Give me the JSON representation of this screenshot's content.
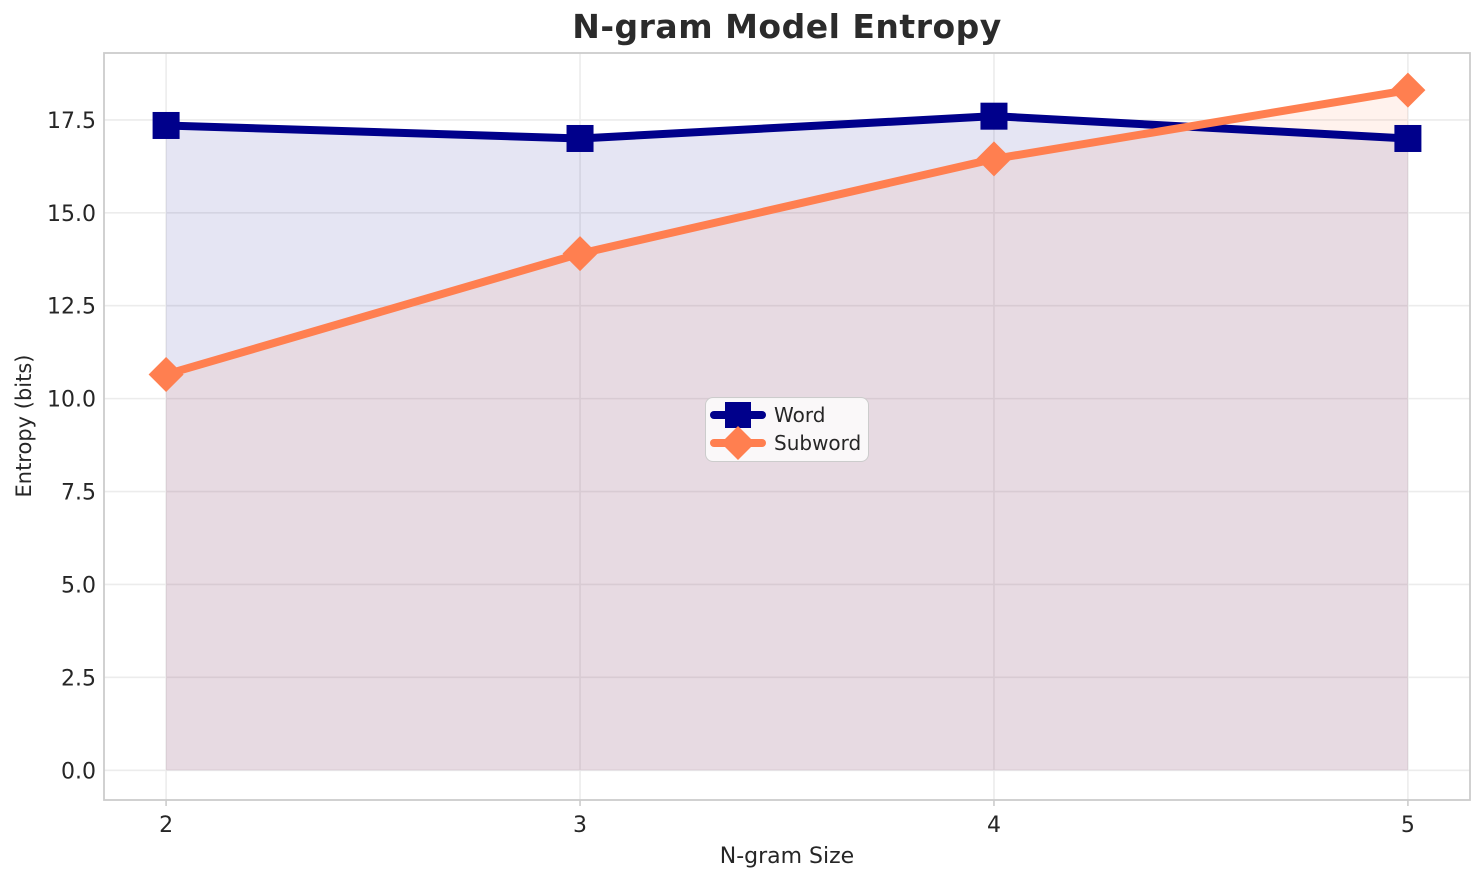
{
  "chart_data": {
    "type": "line",
    "title": "N-gram Model Entropy",
    "xlabel": "N-gram Size",
    "ylabel": "Entropy (bits)",
    "x": [
      2,
      3,
      4,
      5
    ],
    "series": [
      {
        "name": "Word",
        "values": [
          17.35,
          17.0,
          17.6,
          17.0
        ],
        "color": "#00008B",
        "marker": "square",
        "fill_to_zero": true,
        "fill_opacity": 0.1,
        "line_width": 8,
        "marker_size": 27
      },
      {
        "name": "Subword",
        "values": [
          10.65,
          13.9,
          16.45,
          18.3
        ],
        "color": "#FF7F50",
        "marker": "diamond",
        "fill_to_zero": true,
        "fill_opacity": 0.1,
        "line_width": 8,
        "marker_size": 35
      }
    ],
    "xticks": [
      2,
      3,
      4,
      5
    ],
    "xtick_labels": [
      "2",
      "3",
      "4",
      "5"
    ],
    "yticks": [
      0.0,
      2.5,
      5.0,
      7.5,
      10.0,
      12.5,
      15.0,
      17.5
    ],
    "ytick_labels": [
      "0.0",
      "2.5",
      "5.0",
      "7.5",
      "10.0",
      "12.5",
      "15.0",
      "17.5"
    ],
    "xlim": [
      1.85,
      5.15
    ],
    "ylim": [
      -0.8,
      19.3
    ],
    "grid": true,
    "legend_position": "center",
    "legend_items": [
      "Word",
      "Subword"
    ]
  },
  "colors": {
    "background": "#ffffff",
    "grid": "#ececec",
    "spine": "#cccccc",
    "text": "#262626",
    "legend_border": "#cccccc"
  }
}
